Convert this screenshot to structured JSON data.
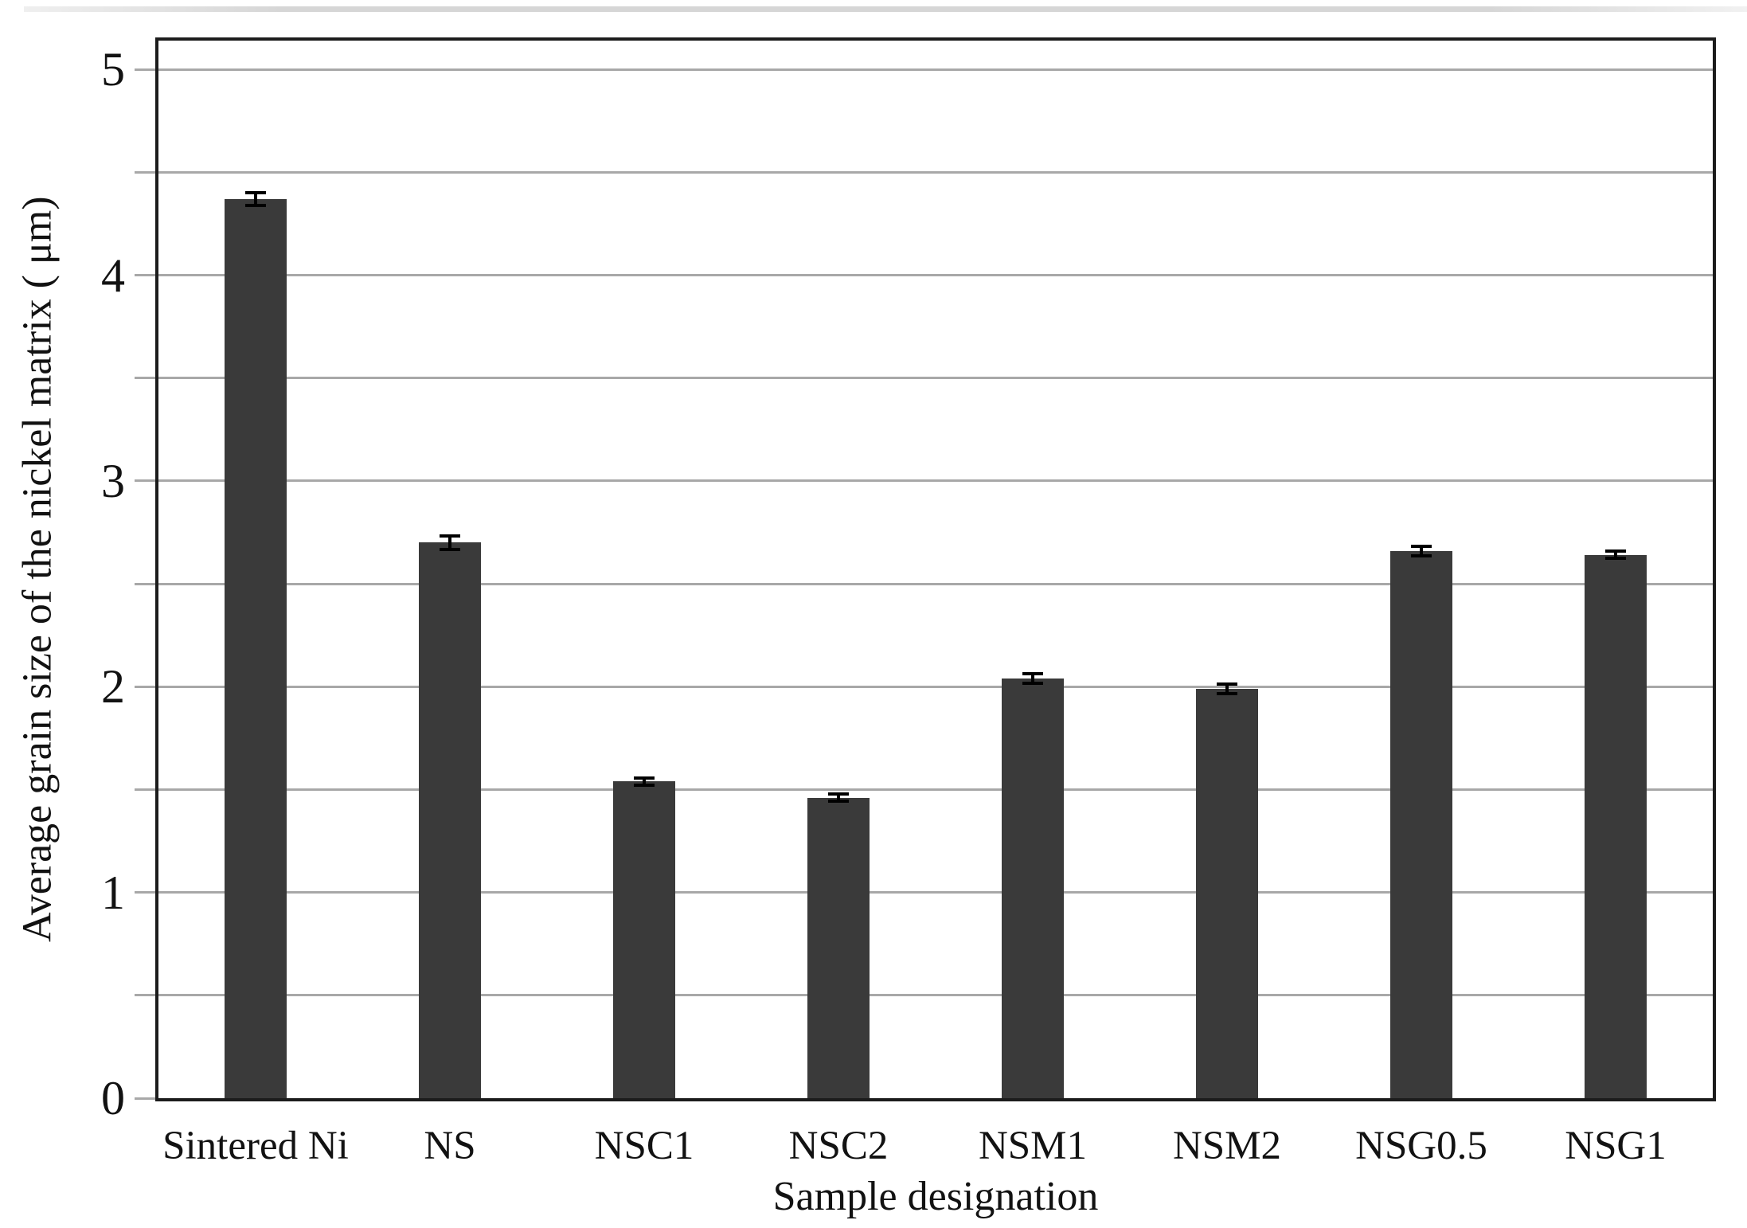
{
  "chart_data": {
    "type": "bar",
    "title": "",
    "categories": [
      "Sintered Ni",
      "NS",
      "NSC1",
      "NSC2",
      "NSM1",
      "NSM2",
      "NSG0.5",
      "NSG1"
    ],
    "values": [
      4.37,
      2.7,
      1.54,
      1.46,
      2.04,
      1.99,
      2.66,
      2.64
    ],
    "error_bars": [
      0.04,
      0.04,
      0.025,
      0.025,
      0.03,
      0.03,
      0.03,
      0.025
    ],
    "xlabel": "Sample designation",
    "ylabel": "Average grain size of the nickel matrix ( μm)",
    "ylim": [
      0,
      5.14
    ],
    "yticks": [
      0,
      1,
      2,
      3,
      4,
      5
    ],
    "ytick_labels": [
      "0",
      "1",
      "2",
      "3",
      "4",
      "5"
    ],
    "gridline_step": 0.5,
    "grid": true,
    "legend_position": "none",
    "colors": {
      "bar": "#3a3a3a",
      "gridline": "#a8a8a8",
      "axis": "#1c1c1c",
      "text": "#121212",
      "error_bar": "#000000",
      "scan_strip": "#d6d6d6"
    }
  }
}
